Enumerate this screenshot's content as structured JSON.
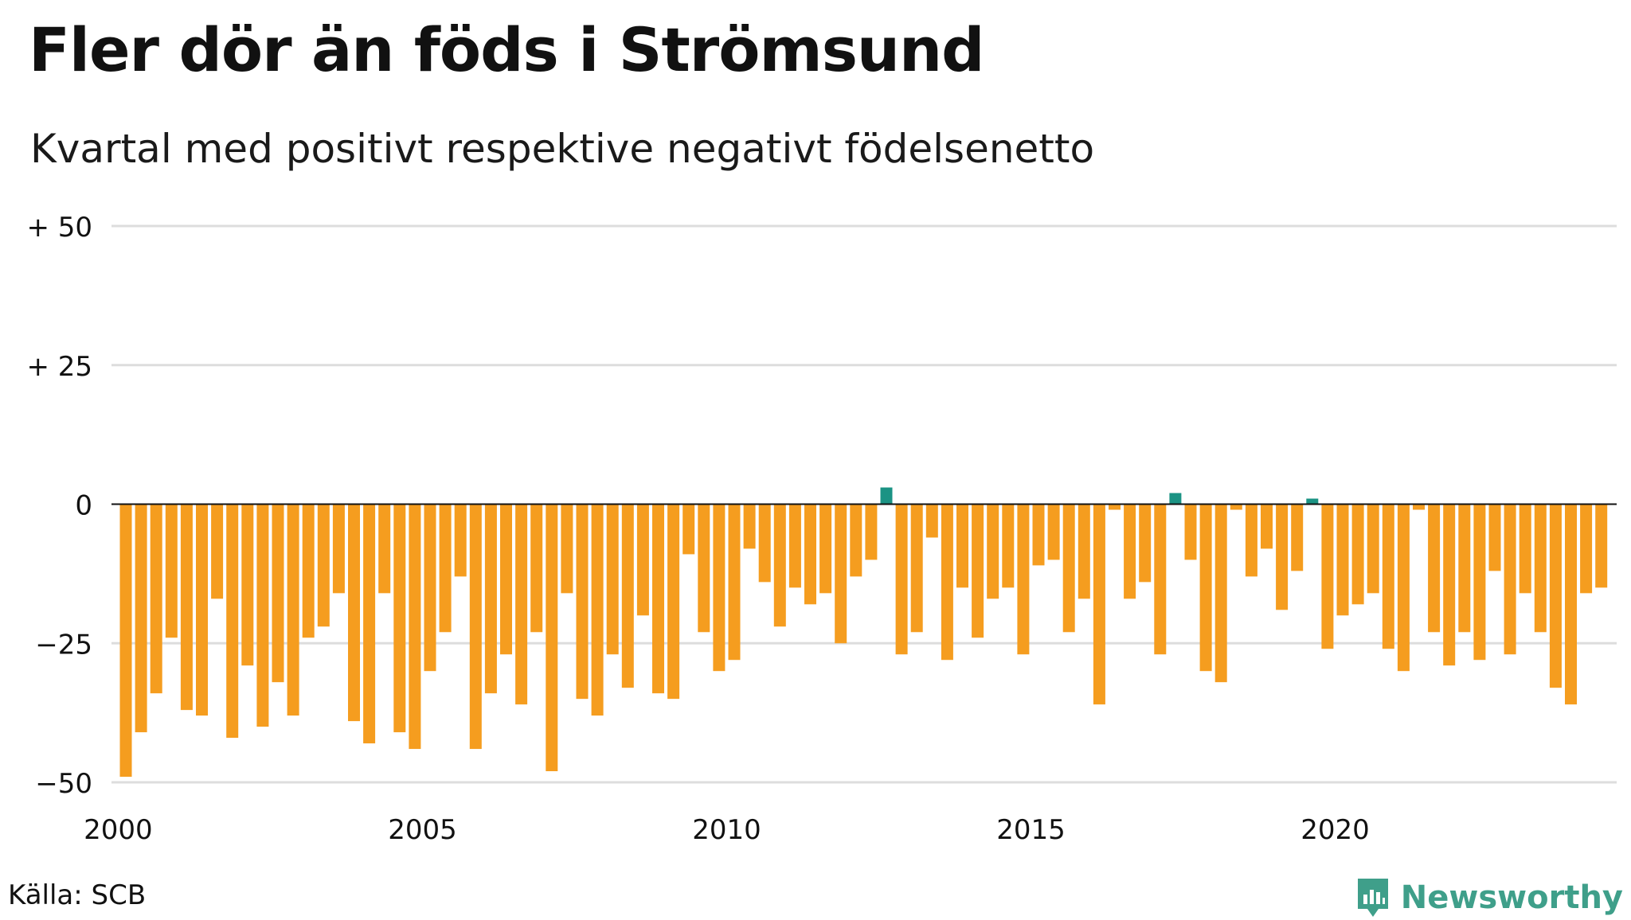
{
  "title": "Fler dör än föds i Strömsund",
  "subtitle": "Kvartal med positivt respektive negativt födelsenetto",
  "source": "Källa: SCB",
  "brand": "Newsworthy",
  "colors": {
    "negative": "#f59d1f",
    "positive": "#1b9384",
    "grid": "#dddddd",
    "zero": "#111111",
    "brand": "#3f9f8a"
  },
  "chart_data": {
    "type": "bar",
    "title": "Fler dör än föds i Strömsund",
    "subtitle": "Kvartal med positivt respektive negativt födelsenetto",
    "ylim": [
      -50,
      50
    ],
    "yticks": [
      50,
      25,
      0,
      -25,
      -50
    ],
    "ytick_labels": [
      "+ 50",
      "+ 25",
      "0",
      "−25",
      "−50"
    ],
    "xticks": [
      "2000",
      "2005",
      "2010",
      "2015",
      "2020"
    ],
    "grid": true,
    "start": "2000-Q1",
    "values": [
      -49,
      -41,
      -34,
      -24,
      -37,
      -38,
      -17,
      -42,
      -29,
      -40,
      -32,
      -38,
      -24,
      -22,
      -16,
      -39,
      -43,
      -16,
      -41,
      -44,
      -30,
      -23,
      -13,
      -44,
      -34,
      -27,
      -36,
      -23,
      -48,
      -16,
      -35,
      -38,
      -27,
      -33,
      -20,
      -34,
      -35,
      -9,
      -23,
      -30,
      -28,
      -8,
      -14,
      -22,
      -15,
      -18,
      -16,
      -25,
      -13,
      -10,
      3,
      -27,
      -23,
      -6,
      -28,
      -15,
      -24,
      -17,
      -15,
      -27,
      -11,
      -10,
      -23,
      -17,
      -36,
      -1,
      -17,
      -14,
      -27,
      2,
      -10,
      -30,
      -32,
      -1,
      -13,
      -8,
      -19,
      -12,
      1,
      -26,
      -20,
      -18,
      -16,
      -26,
      -30,
      -1,
      -23,
      -29,
      -23,
      -28,
      -12,
      -27,
      -16,
      -23,
      -33,
      -36,
      -16,
      -15
    ]
  }
}
